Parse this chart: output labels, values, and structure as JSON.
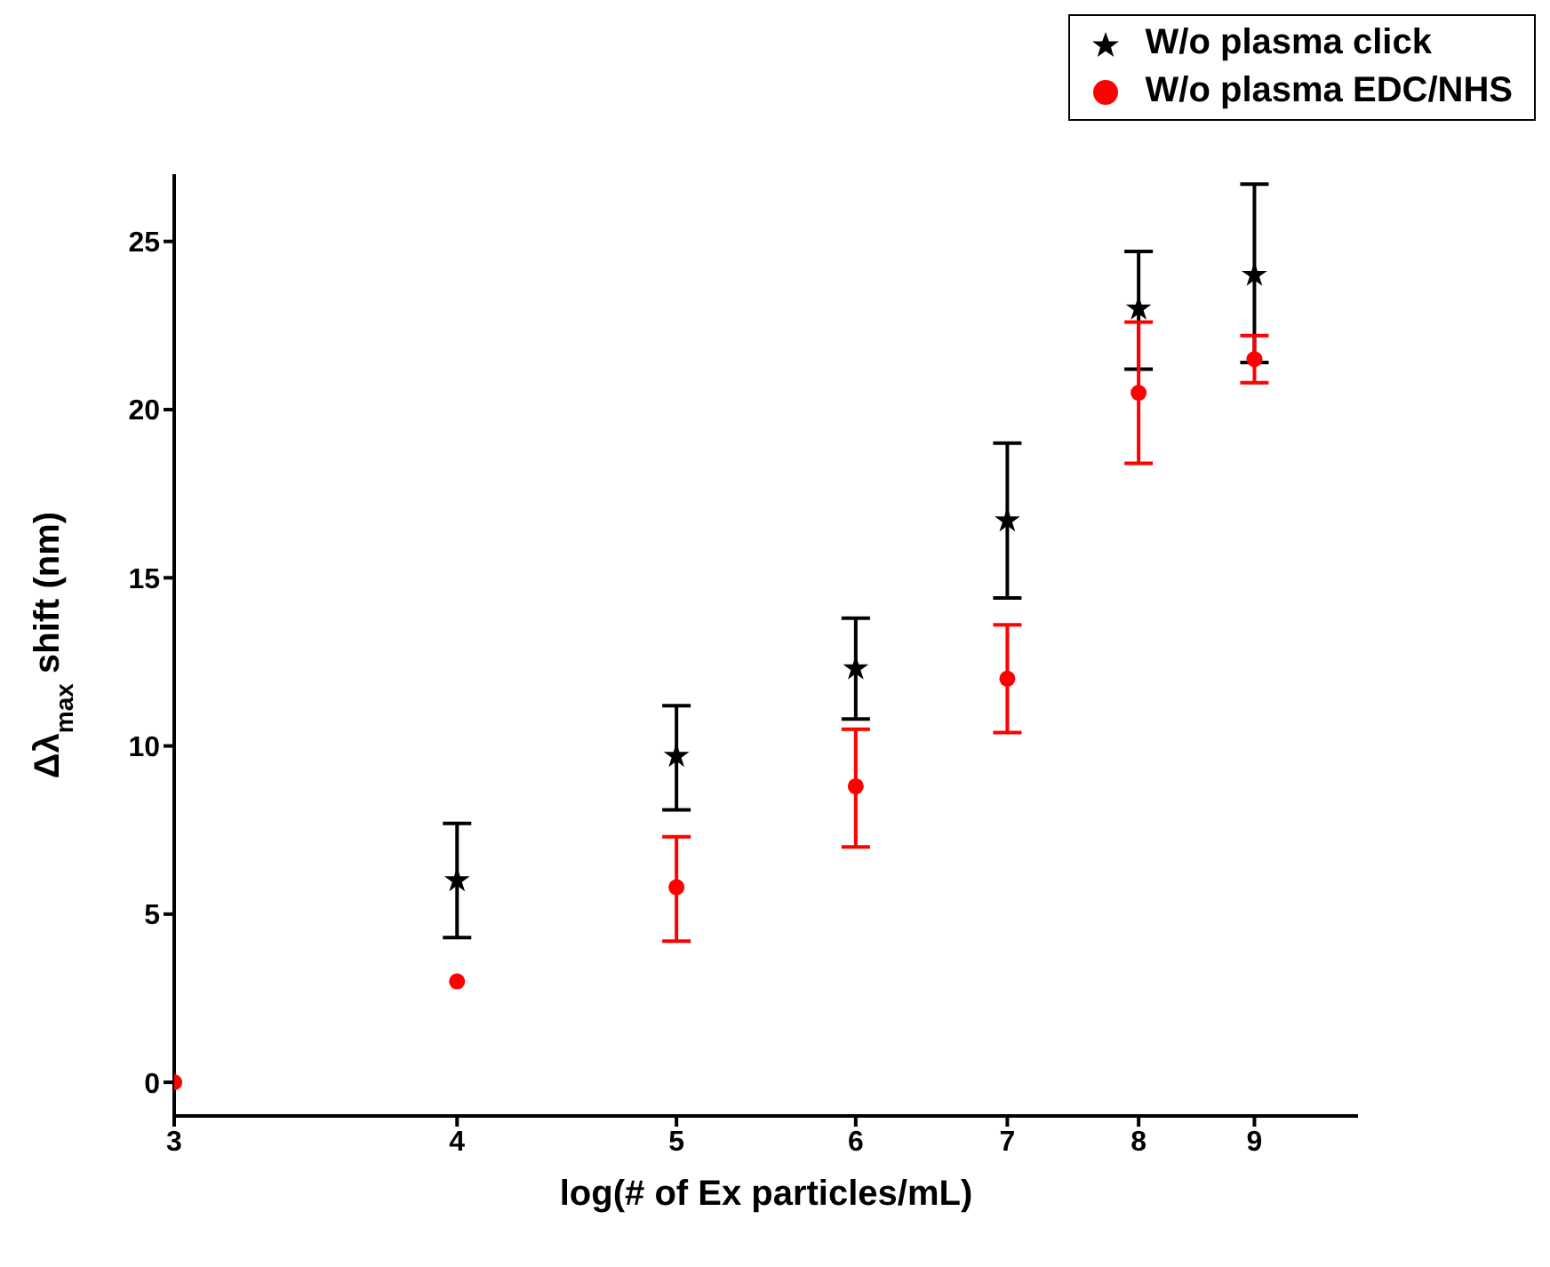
{
  "chart_data": {
    "type": "scatter",
    "xlabel": "log(# of Ex particles/mL)",
    "ylabel": "Δλ$_{max}$ shift (nm)",
    "x": [
      3,
      4,
      5,
      6,
      7,
      8,
      9
    ],
    "series": [
      {
        "name": "W/o plasma click",
        "color": "#000000",
        "marker": "star",
        "values": [
          null,
          6.0,
          9.7,
          12.3,
          16.7,
          23.0,
          24.0
        ],
        "errors": [
          null,
          [
            4.3,
            7.7
          ],
          [
            8.1,
            11.2
          ],
          [
            10.8,
            13.8
          ],
          [
            14.4,
            19.0
          ],
          [
            21.2,
            24.7
          ],
          [
            21.4,
            26.7
          ]
        ]
      },
      {
        "name": "W/o plasma EDC/NHS",
        "color": "#ff0000",
        "marker": "circle",
        "values": [
          0,
          3.0,
          5.8,
          8.8,
          12.0,
          20.5,
          21.5
        ],
        "errors": [
          null,
          null,
          [
            4.2,
            7.3
          ],
          [
            7.0,
            10.5
          ],
          [
            10.4,
            13.6
          ],
          [
            18.4,
            22.6
          ],
          [
            20.8,
            22.2
          ]
        ]
      }
    ],
    "log": "x",
    "xlim": [
      3,
      10
    ],
    "xticks": [
      3,
      4,
      5,
      6,
      7,
      8,
      9
    ],
    "ylim": [
      -1,
      27
    ],
    "yticks": [
      0,
      5,
      10,
      15,
      20,
      25
    ],
    "grid": false,
    "legend": "top right"
  }
}
